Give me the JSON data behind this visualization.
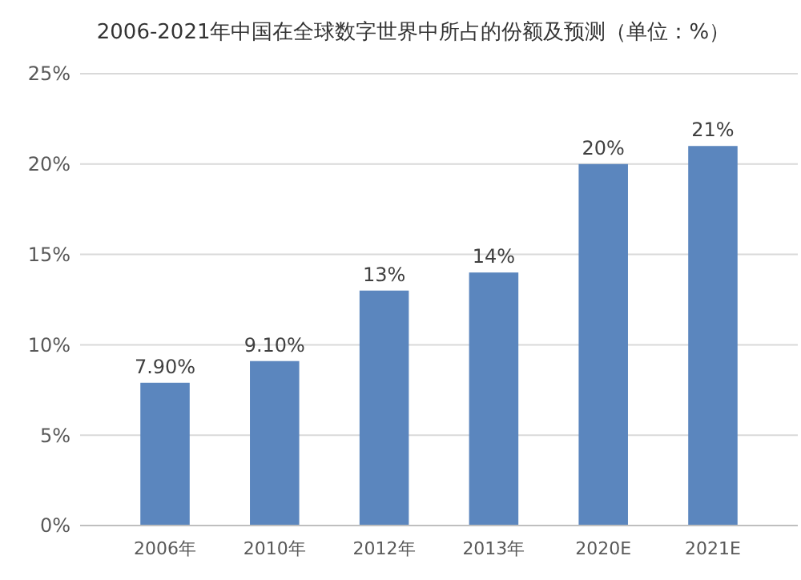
{
  "chart_data": {
    "type": "bar",
    "title": "2006-2021年中国在全球数字世界中所占的份额及预测（单位：%）",
    "categories": [
      "2006年",
      "2010年",
      "2012年",
      "2013年",
      "2020E",
      "2021E"
    ],
    "values": [
      7.9,
      9.1,
      13,
      14,
      20,
      21
    ],
    "value_labels": [
      "7.90%",
      "9.10%",
      "13%",
      "14%",
      "20%",
      "21%"
    ],
    "color": "#5b86be",
    "ylim": [
      0,
      25
    ],
    "yticks": [
      {
        "value": 0,
        "label": "0%"
      },
      {
        "value": 5,
        "label": "5%"
      },
      {
        "value": 10,
        "label": "10%"
      },
      {
        "value": 15,
        "label": "15%"
      },
      {
        "value": 20,
        "label": "20%"
      },
      {
        "value": 25,
        "label": "25%"
      }
    ],
    "grid": "y"
  }
}
